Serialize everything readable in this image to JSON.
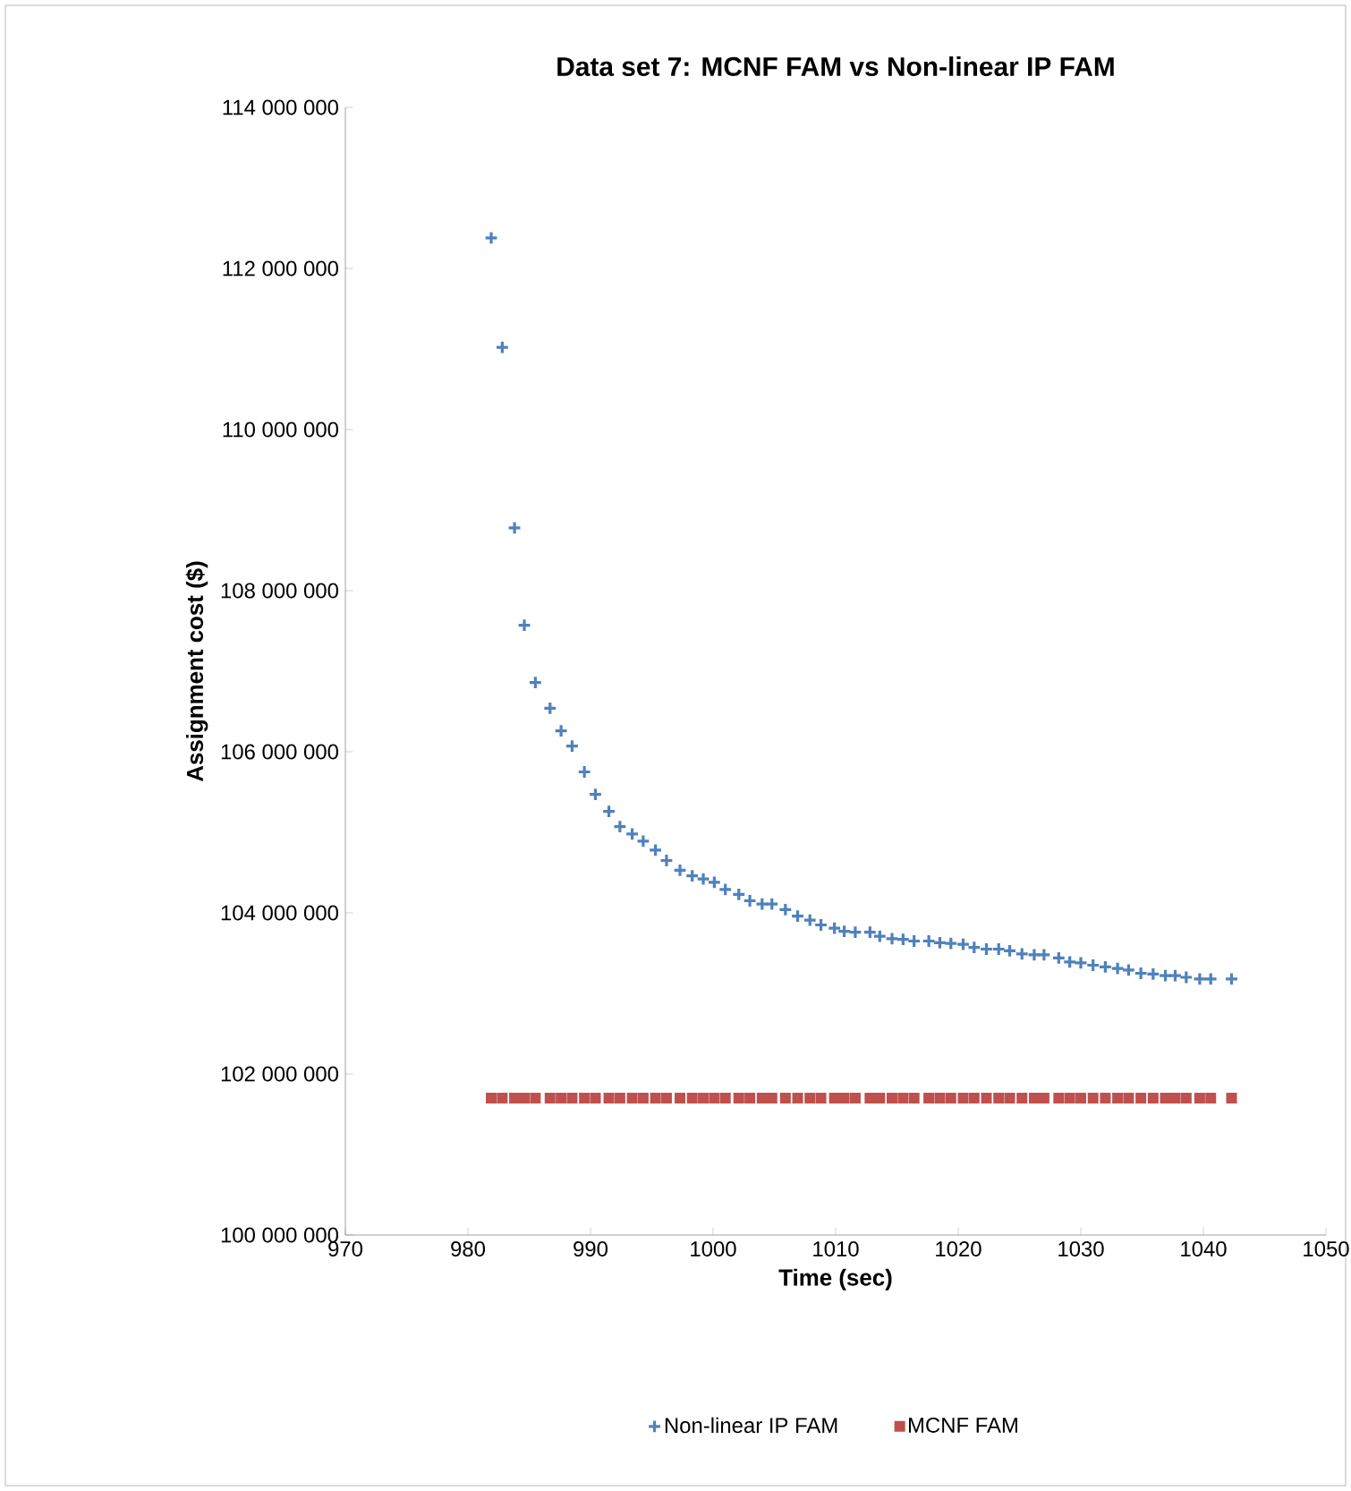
{
  "chart_data": {
    "type": "scatter",
    "title": "Data set 7: MCNF FAM vs Non-linear IP FAM",
    "xlabel": "Time (sec)",
    "ylabel": "Assignment cost ($)",
    "xlim": [
      970,
      1050
    ],
    "xticks": [
      970,
      980,
      990,
      1000,
      1010,
      1020,
      1030,
      1040,
      1050
    ],
    "ylim": [
      100000000,
      114000000
    ],
    "yticks": [
      {
        "value": 100000000,
        "label": "100 000 000"
      },
      {
        "value": 102000000,
        "label": "102 000 000"
      },
      {
        "value": 104000000,
        "label": "104 000 000"
      },
      {
        "value": 106000000,
        "label": "106 000 000"
      },
      {
        "value": 108000000,
        "label": "108 000 000"
      },
      {
        "value": 110000000,
        "label": "110 000 000"
      },
      {
        "value": 112000000,
        "label": "112 000 000"
      },
      {
        "value": 114000000,
        "label": "114 000 000"
      }
    ],
    "legend": "bottom",
    "grid": false,
    "series": [
      {
        "name": "Non-linear IP FAM",
        "color": "#4f81bd",
        "marker": "cross",
        "x": [
          981.9,
          982.8,
          983.8,
          984.6,
          985.5,
          986.7,
          987.6,
          988.5,
          989.5,
          990.4,
          991.5,
          992.4,
          993.4,
          994.3,
          995.3,
          996.2,
          997.3,
          998.3,
          999.2,
          1000.1,
          1001.0,
          1002.1,
          1003.0,
          1004.0,
          1004.8,
          1005.9,
          1006.9,
          1007.9,
          1008.8,
          1009.9,
          1010.7,
          1011.6,
          1012.8,
          1013.6,
          1014.6,
          1015.5,
          1016.4,
          1017.6,
          1018.5,
          1019.4,
          1020.4,
          1021.3,
          1022.3,
          1023.3,
          1024.2,
          1025.2,
          1026.2,
          1027.0,
          1028.2,
          1029.1,
          1030.0,
          1031.0,
          1032.0,
          1033.0,
          1033.9,
          1034.9,
          1035.9,
          1036.9,
          1037.7,
          1038.6,
          1039.7,
          1040.6,
          1042.3
        ],
        "values": [
          112380000,
          111020000,
          108780000,
          107570000,
          106860000,
          106540000,
          106260000,
          106070000,
          105750000,
          105470000,
          105260000,
          105070000,
          104980000,
          104890000,
          104780000,
          104650000,
          104530000,
          104460000,
          104420000,
          104380000,
          104290000,
          104230000,
          104150000,
          104110000,
          104110000,
          104040000,
          103960000,
          103910000,
          103850000,
          103810000,
          103770000,
          103760000,
          103760000,
          103710000,
          103680000,
          103670000,
          103650000,
          103650000,
          103630000,
          103620000,
          103610000,
          103570000,
          103550000,
          103550000,
          103530000,
          103490000,
          103480000,
          103480000,
          103440000,
          103390000,
          103380000,
          103350000,
          103330000,
          103310000,
          103290000,
          103250000,
          103240000,
          103220000,
          103220000,
          103200000,
          103180000,
          103180000,
          103180000
        ]
      },
      {
        "name": "MCNF FAM",
        "color": "#c0504d",
        "marker": "square",
        "x": [
          981.9,
          982.8,
          983.8,
          984.6,
          985.5,
          986.7,
          987.6,
          988.5,
          989.5,
          990.4,
          991.5,
          992.4,
          993.4,
          994.3,
          995.3,
          996.2,
          997.3,
          998.3,
          999.2,
          1000.1,
          1001.0,
          1002.1,
          1003.0,
          1004.0,
          1004.8,
          1005.9,
          1006.9,
          1007.9,
          1008.8,
          1009.9,
          1010.7,
          1011.6,
          1012.8,
          1013.6,
          1014.6,
          1015.5,
          1016.4,
          1017.6,
          1018.5,
          1019.4,
          1020.4,
          1021.3,
          1022.3,
          1023.3,
          1024.2,
          1025.2,
          1026.2,
          1027.0,
          1028.2,
          1029.1,
          1030.0,
          1031.0,
          1032.0,
          1033.0,
          1033.9,
          1034.9,
          1035.9,
          1036.9,
          1037.7,
          1038.6,
          1039.7,
          1040.6,
          1042.3
        ],
        "values": [
          101700000,
          101700000,
          101700000,
          101700000,
          101700000,
          101700000,
          101700000,
          101700000,
          101700000,
          101700000,
          101700000,
          101700000,
          101700000,
          101700000,
          101700000,
          101700000,
          101700000,
          101700000,
          101700000,
          101700000,
          101700000,
          101700000,
          101700000,
          101700000,
          101700000,
          101700000,
          101700000,
          101700000,
          101700000,
          101700000,
          101700000,
          101700000,
          101700000,
          101700000,
          101700000,
          101700000,
          101700000,
          101700000,
          101700000,
          101700000,
          101700000,
          101700000,
          101700000,
          101700000,
          101700000,
          101700000,
          101700000,
          101700000,
          101700000,
          101700000,
          101700000,
          101700000,
          101700000,
          101700000,
          101700000,
          101700000,
          101700000,
          101700000,
          101700000,
          101700000,
          101700000,
          101700000,
          101700000
        ]
      }
    ]
  }
}
